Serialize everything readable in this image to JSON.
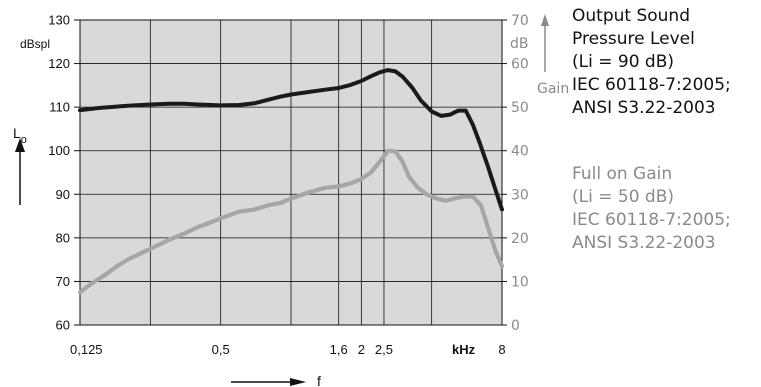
{
  "chart_data": {
    "type": "line",
    "x_scale": "log",
    "x_unit": "kHz",
    "x_ticks": [
      "0,125",
      "0,5",
      "1,6",
      "2",
      "2,5",
      "8"
    ],
    "x_unit_label": "kHz",
    "x_axis_symbol": "f",
    "left_axis": {
      "unit": "dBspl",
      "symbol": "L",
      "symbol_sub": "o",
      "range": [
        60,
        130
      ],
      "ticks": [
        "60",
        "70",
        "80",
        "90",
        "100",
        "110",
        "120",
        "130"
      ]
    },
    "right_axis": {
      "unit": "dB",
      "title": "Gain",
      "range": [
        0,
        70
      ],
      "ticks": [
        "0",
        "10",
        "20",
        "30",
        "40",
        "50",
        "60",
        "70"
      ]
    },
    "grid": true,
    "series": [
      {
        "name": "Output Sound Pressure Level (Li = 90 dB)",
        "axis": "left",
        "color": "#1a1a1a",
        "x": [
          0.125,
          0.15,
          0.2,
          0.25,
          0.3,
          0.35,
          0.4,
          0.5,
          0.6,
          0.7,
          0.8,
          0.9,
          1.0,
          1.2,
          1.4,
          1.6,
          1.8,
          2.0,
          2.2,
          2.4,
          2.6,
          2.8,
          3.0,
          3.3,
          3.6,
          4.0,
          4.4,
          4.8,
          5.2,
          5.6,
          6.0,
          6.4,
          7.0,
          7.5,
          8.0
        ],
        "y": [
          109.3,
          109.8,
          110.3,
          110.6,
          110.8,
          110.8,
          110.6,
          110.4,
          110.5,
          110.9,
          111.7,
          112.4,
          112.9,
          113.5,
          114.0,
          114.4,
          115.1,
          116.0,
          117.1,
          118.0,
          118.5,
          118.2,
          117.0,
          114.5,
          111.5,
          109.0,
          108.0,
          108.3,
          109.2,
          109.2,
          106.0,
          102.0,
          96.0,
          91.0,
          86.5
        ]
      },
      {
        "name": "Full on Gain (Li = 50 dB)",
        "axis": "right",
        "color": "#a6a6a6",
        "x": [
          0.125,
          0.14,
          0.16,
          0.18,
          0.2,
          0.25,
          0.3,
          0.35,
          0.4,
          0.45,
          0.5,
          0.6,
          0.7,
          0.8,
          0.9,
          1.0,
          1.2,
          1.4,
          1.6,
          1.8,
          2.0,
          2.2,
          2.4,
          2.6,
          2.8,
          3.0,
          3.2,
          3.5,
          3.8,
          4.2,
          4.6,
          5.0,
          5.5,
          6.0,
          6.5,
          7.0,
          7.5,
          8.0
        ],
        "y": [
          7.5,
          9.5,
          11.5,
          13.5,
          15.0,
          17.5,
          19.5,
          21.0,
          22.5,
          23.5,
          24.5,
          26.0,
          26.5,
          27.5,
          28.0,
          29.0,
          30.5,
          31.5,
          31.8,
          32.5,
          33.5,
          35.0,
          37.5,
          40.0,
          39.8,
          37.5,
          34.0,
          31.5,
          30.0,
          29.0,
          28.5,
          29.0,
          29.5,
          29.5,
          27.5,
          22.0,
          17.0,
          13.5
        ]
      }
    ]
  },
  "legend": {
    "output": {
      "color": "#111111",
      "lines": [
        "Output Sound",
        "Pressure Level",
        "(Li = 90 dB)",
        "IEC 60118-7:2005;",
        "ANSI S3.22-2003"
      ]
    },
    "gain": {
      "color": "#8a8a8a",
      "lines": [
        "Full on Gain",
        "(Li = 50 dB)",
        "IEC 60118-7:2005;",
        "ANSI S3.22-2003"
      ]
    }
  }
}
